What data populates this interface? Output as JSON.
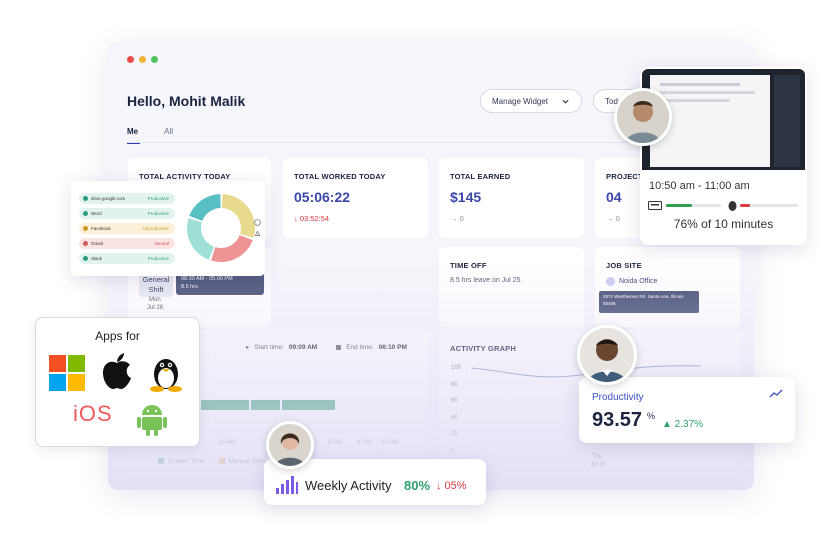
{
  "header": {
    "greeting": "Hello, Mohit Malik",
    "manage_widget": "Manage Widget",
    "today": "Tod"
  },
  "tabs": [
    {
      "label": "Me"
    },
    {
      "label": "All"
    }
  ],
  "cards": {
    "activity": {
      "title": "TOTAL ACTIVITY TODAY"
    },
    "worked": {
      "title": "TOTAL WORKED TODAY",
      "value": "05:06:22",
      "delta": "↓ 03:52:54"
    },
    "earned": {
      "title": "TOTAL EARNED",
      "value": "$145",
      "delta": "→ 0"
    },
    "projects": {
      "title": "PROJECT",
      "value": "04",
      "delta": "→ 0"
    },
    "timeoff": {
      "title": "TIME OFF",
      "text": "8.5 hrs leave on Jul 25."
    },
    "jobsite": {
      "title": "JOB SITE",
      "office": "Noida Office",
      "address": "2972 Westheimer Rd. Santa Ana, Illinois 85486"
    },
    "shift": {
      "name": "General Shift",
      "day": "Mon",
      "date": "Jul 28",
      "tooltip_time": "08:30 AM - 05:00 PM",
      "tooltip_hours": "8.5 hrs"
    },
    "timeline": {
      "start_label": "Start time:",
      "start_value": "09:09 AM",
      "end_label": "End time:",
      "end_value": "06:10 PM",
      "ticks": [
        "10 AM",
        "6 PM",
        "8 PM",
        "10 PM"
      ],
      "legend_screen": "Screen Time",
      "legend_manual": "Manual Time"
    },
    "activity_graph": {
      "title": "ACTIVITY GRAPH",
      "yticks": [
        "100",
        "80",
        "60",
        "40",
        "20",
        "0"
      ],
      "day": "Thu",
      "date": "Jul 30"
    }
  },
  "apps_panel": {
    "title": "Apps for",
    "icons": [
      "windows-icon",
      "apple-icon",
      "linux-icon",
      "ios-icon",
      "android-icon"
    ],
    "ios_label": "iOS"
  },
  "donut_popup": {
    "rows": [
      {
        "site": "drive.google.com",
        "tag": "Productive",
        "color": "#e2f3ef",
        "tag_color": "#2a9d80"
      },
      {
        "site": "Word",
        "tag": "Productive",
        "color": "#e2f3ef",
        "tag_color": "#2a9d80"
      },
      {
        "site": "Facebook",
        "tag": "Unproductive",
        "color": "#fbf1d9",
        "tag_color": "#c99b23"
      },
      {
        "site": "Gmail",
        "tag": "Neutral",
        "color": "#fbe3e3",
        "tag_color": "#d25b5b"
      },
      {
        "site": "Slack",
        "tag": "Productive",
        "color": "#e2f3ef",
        "tag_color": "#2a9d80"
      }
    ],
    "slices": [
      {
        "value": 30,
        "color": "#e7da8c"
      },
      {
        "value": 25,
        "color": "#ef9494"
      },
      {
        "value": 25,
        "color": "#9ee0d5"
      },
      {
        "value": 20,
        "color": "#58bfc4"
      }
    ]
  },
  "screenshot_card": {
    "time_range": "10:50 am - 11:00 am",
    "summary": "76% of 10 minutes",
    "keyboard_pct": 0.48,
    "mouse_pct": 0.18
  },
  "productivity_card": {
    "label": "Productivity",
    "value": "93.57",
    "unit": "%",
    "change": "▲ 2.37%"
  },
  "weekly_card": {
    "label": "Weekly Activity",
    "value": "80%",
    "change": "↓ 05%"
  },
  "colors": {
    "accent": "#3b46a8",
    "green": "#2e9f6e",
    "red": "#d7373f"
  }
}
